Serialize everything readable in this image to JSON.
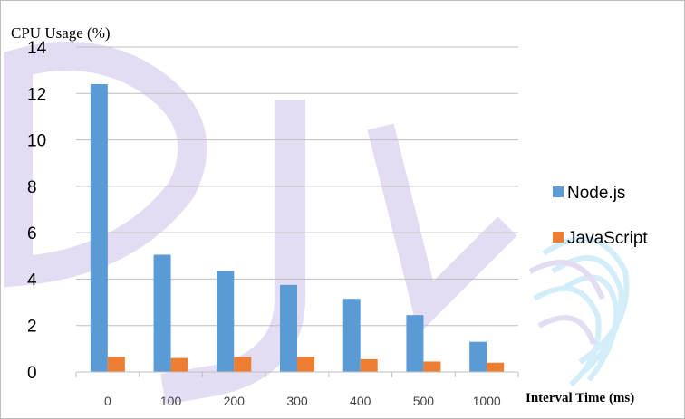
{
  "chart_data": {
    "type": "bar",
    "ylabel": "CPU Usage (%)",
    "xlabel": "Interval Time (ms)",
    "categories": [
      "0",
      "100",
      "200",
      "300",
      "400",
      "500",
      "1000"
    ],
    "ylim": [
      0,
      14
    ],
    "yticks": [
      "0",
      "2",
      "4",
      "6",
      "8",
      "10",
      "12",
      "14"
    ],
    "grid": true,
    "legend_position": "right",
    "series": [
      {
        "name": "Node.js",
        "color": "#5b9bd5",
        "values": [
          12.4,
          5.05,
          4.35,
          3.75,
          3.15,
          2.45,
          1.3
        ]
      },
      {
        "name": "JavaScript",
        "color": "#ed7d31",
        "values": [
          0.65,
          0.6,
          0.65,
          0.65,
          0.55,
          0.45,
          0.4
        ]
      }
    ]
  },
  "watermark": {
    "text": "IJCA",
    "colors": [
      "#b39ddb",
      "#81d4fa"
    ]
  }
}
